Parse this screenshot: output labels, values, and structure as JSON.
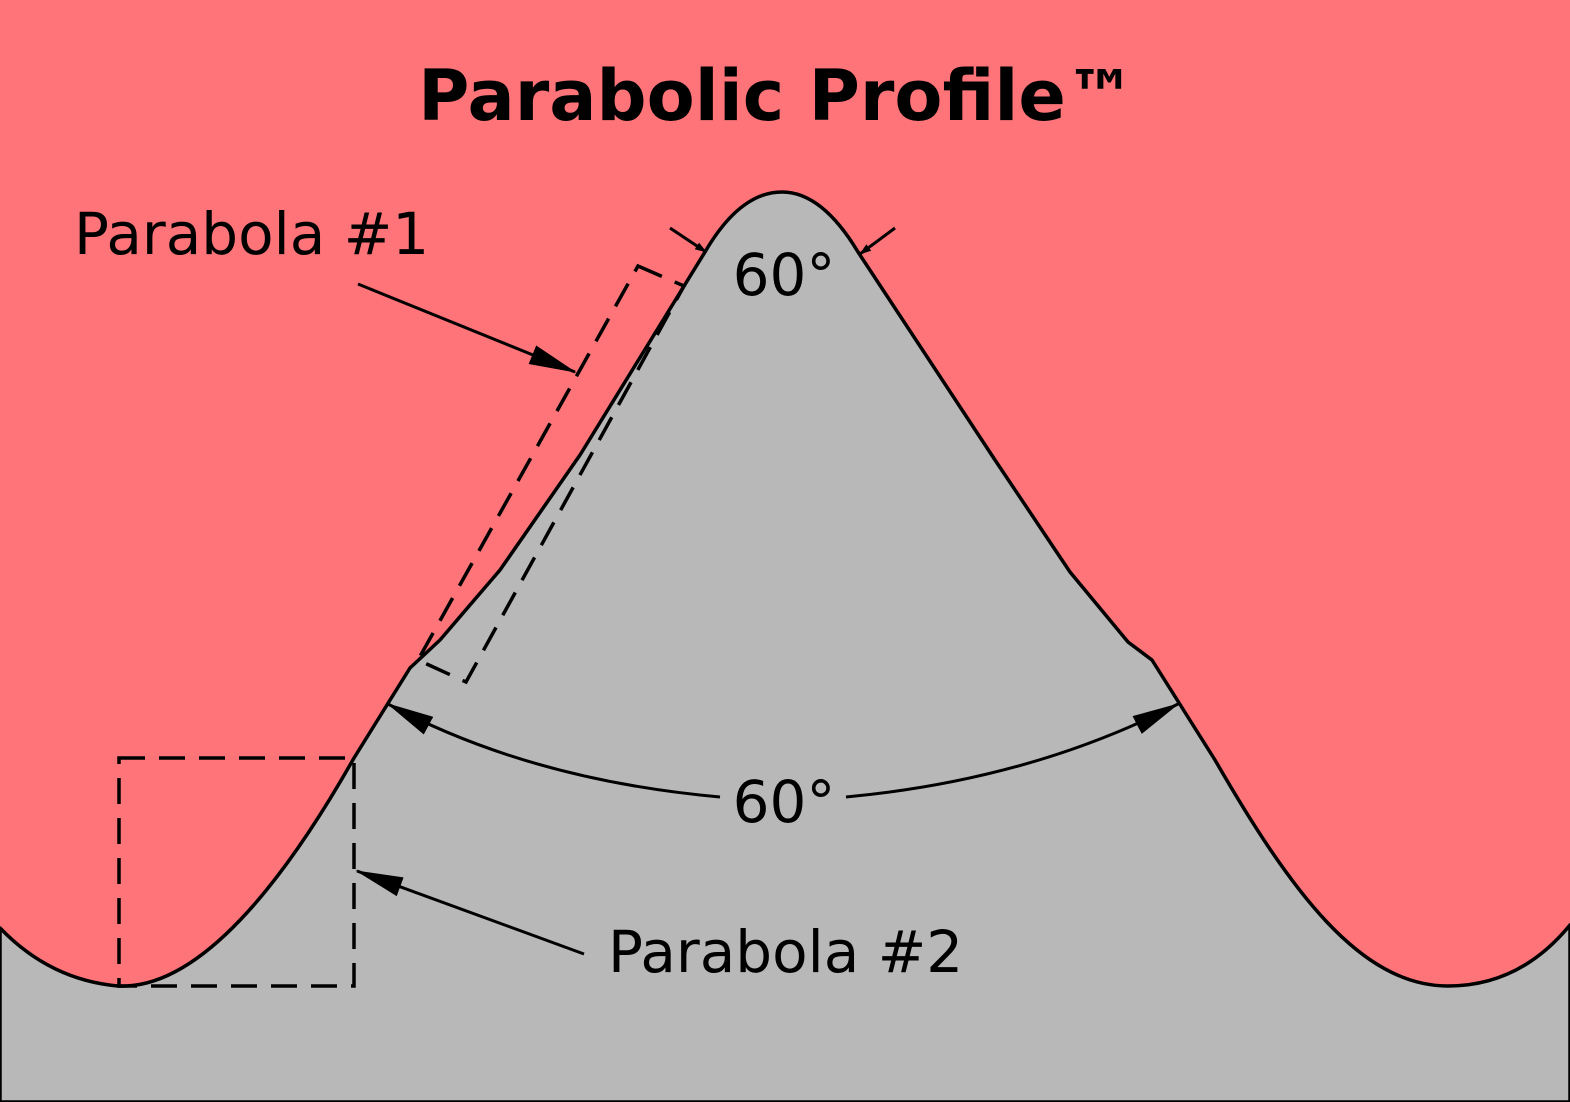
{
  "title": "Parabolic Profile™",
  "labels": {
    "parabola_1": "Parabola #1",
    "parabola_2": "Parabola #2",
    "angle_top": "60°",
    "angle_main": "60°"
  },
  "colors": {
    "background": "#FF7478",
    "profile_fill": "#B8B8B8",
    "line": "#000000"
  }
}
